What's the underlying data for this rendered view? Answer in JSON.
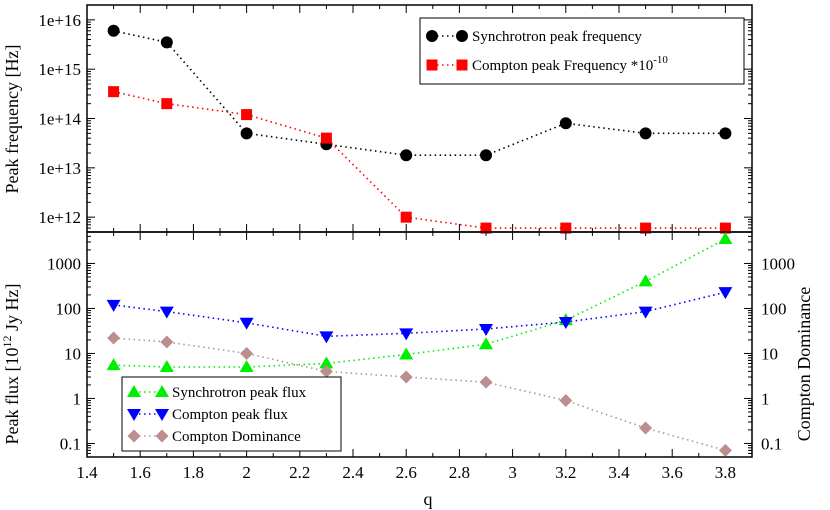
{
  "chart_data": [
    {
      "type": "line",
      "panel": "top",
      "ylabel": "Peak frequency [Hz]",
      "yscale": "log",
      "ylim": [
        500000000000,
        20000000000000000
      ],
      "yticks": [
        {
          "value": 1000000000000,
          "label": "1e+12"
        },
        {
          "value": 10000000000000,
          "label": "1e+13"
        },
        {
          "value": 100000000000000,
          "label": "1e+14"
        },
        {
          "value": 1000000000000000,
          "label": "1e+15"
        },
        {
          "value": 10000000000000000,
          "label": "1e+16"
        }
      ],
      "x": [
        1.5,
        1.7,
        2.0,
        2.3,
        2.6,
        2.9,
        3.2,
        3.5,
        3.8
      ],
      "series": [
        {
          "name": "Synchrotron peak frequency",
          "legend_main": "Synchrotron peak frequency",
          "legend_sup": "",
          "color": "#000000",
          "marker": "circle",
          "values": [
            6000000000000000,
            3500000000000000,
            50000000000000,
            30000000000000,
            18000000000000,
            18000000000000,
            80000000000000,
            50000000000000,
            50000000000000
          ]
        },
        {
          "name": "Compton peak Frequency *10^-10",
          "legend_main": "Compton peak Frequency *10",
          "legend_sup": "-10",
          "color": "#ff0000",
          "marker": "square",
          "values": [
            350000000000000,
            200000000000000,
            120000000000000,
            40000000000000,
            1000000000000,
            600000000000,
            600000000000,
            600000000000,
            600000000000
          ]
        }
      ],
      "legend_position": "top-right"
    },
    {
      "type": "line",
      "panel": "bottom",
      "xlabel": "q",
      "ylabel_left_main": "Peak flux [10",
      "ylabel_left_sup": "12",
      "ylabel_left_rest": " Jy Hz]",
      "ylabel_right": "Compton Dominance",
      "yscale": "log",
      "ylim": [
        0.05,
        5000
      ],
      "yticks": [
        {
          "value": 0.1,
          "label": "0.1"
        },
        {
          "value": 1,
          "label": "1"
        },
        {
          "value": 10,
          "label": "10"
        },
        {
          "value": 100,
          "label": "100"
        },
        {
          "value": 1000,
          "label": "1000"
        }
      ],
      "xlim": [
        1.4,
        3.9
      ],
      "xticks": [
        {
          "value": 1.4,
          "label": "1.4"
        },
        {
          "value": 1.6,
          "label": "1.6"
        },
        {
          "value": 1.8,
          "label": "1.8"
        },
        {
          "value": 2.0,
          "label": "2"
        },
        {
          "value": 2.2,
          "label": "2.2"
        },
        {
          "value": 2.4,
          "label": "2.4"
        },
        {
          "value": 2.6,
          "label": "2.6"
        },
        {
          "value": 2.8,
          "label": "2.8"
        },
        {
          "value": 3.0,
          "label": "3"
        },
        {
          "value": 3.2,
          "label": "3.2"
        },
        {
          "value": 3.4,
          "label": "3.4"
        },
        {
          "value": 3.6,
          "label": "3.6"
        },
        {
          "value": 3.8,
          "label": "3.8"
        }
      ],
      "x": [
        1.5,
        1.7,
        2.0,
        2.3,
        2.6,
        2.9,
        3.2,
        3.5,
        3.8
      ],
      "series": [
        {
          "name": "Synchrotron peak flux",
          "color": "#00ee00",
          "marker": "triangle-up",
          "values": [
            5.5,
            5,
            5,
            6,
            9.5,
            16,
            55,
            400,
            3500
          ]
        },
        {
          "name": "Compton peak flux",
          "color": "#0000ff",
          "marker": "triangle-down",
          "values": [
            120,
            85,
            48,
            24,
            28,
            35,
            50,
            85,
            230
          ]
        },
        {
          "name": "Compton Dominance",
          "color": "#bc8f8f",
          "marker": "diamond",
          "values": [
            22,
            18,
            10,
            4,
            3,
            2.3,
            0.9,
            0.22,
            0.07
          ]
        }
      ],
      "legend_position": "bottom-left"
    }
  ]
}
